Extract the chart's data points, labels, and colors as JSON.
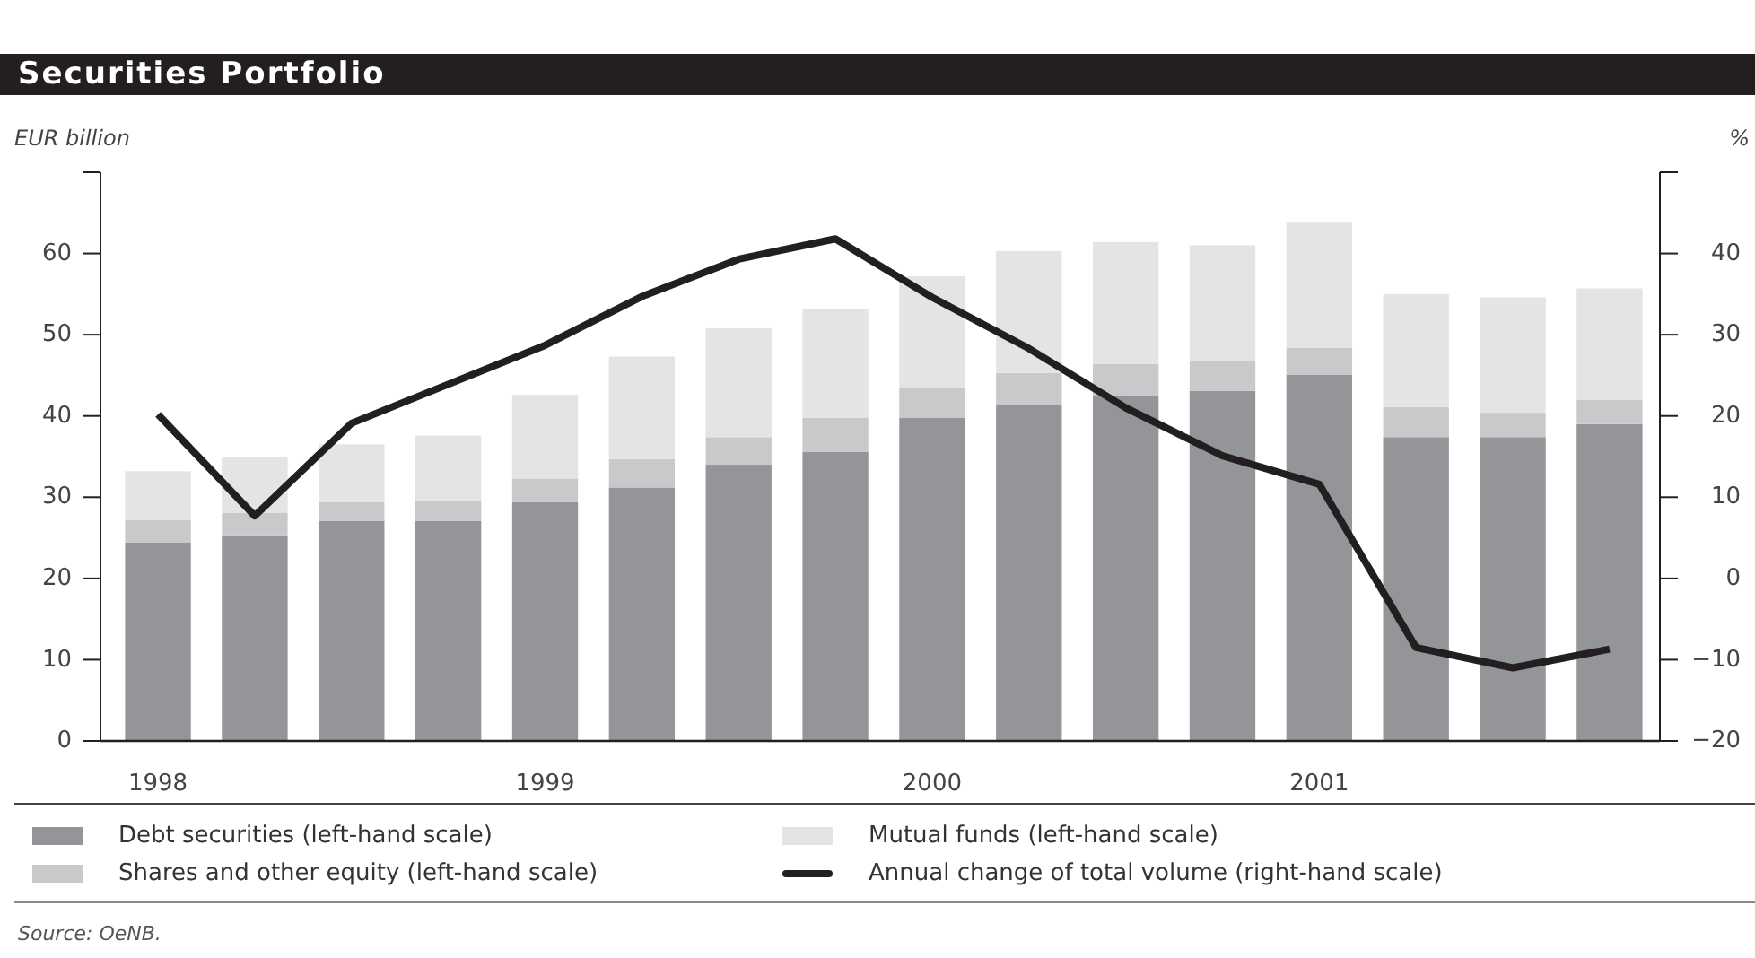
{
  "chart_data": {
    "type": "bar",
    "title": "Securities Portfolio",
    "ylabel": "EUR billion",
    "y2label": "%",
    "categories": [
      "1998",
      null,
      null,
      null,
      "1999",
      null,
      null,
      null,
      "2000",
      null,
      null,
      null,
      "2001",
      null,
      null,
      null
    ],
    "stacked": true,
    "series": [
      {
        "name": "Debt securities (left-hand scale)",
        "color": "#939598",
        "values": [
          24.4,
          25.3,
          27.1,
          27.1,
          29.4,
          31.2,
          34.0,
          35.6,
          39.8,
          41.3,
          42.4,
          43.1,
          45.1,
          37.4,
          37.4,
          39.0
        ]
      },
      {
        "name": "Shares and other equity (left-hand scale)",
        "color": "#c8c9cb",
        "values": [
          2.8,
          2.8,
          2.3,
          2.5,
          2.9,
          3.5,
          3.4,
          4.2,
          3.7,
          4.0,
          4.0,
          3.7,
          3.3,
          3.7,
          3.0,
          3.0
        ]
      },
      {
        "name": "Mutual funds (left-hand scale)",
        "color": "#e3e4e6",
        "values": [
          6.0,
          6.8,
          7.1,
          8.0,
          10.3,
          12.6,
          13.4,
          13.4,
          13.7,
          15.0,
          15.0,
          14.2,
          15.4,
          13.9,
          14.2,
          13.7
        ]
      },
      {
        "name": "Annual change of total volume (right-hand scale)",
        "type": "line",
        "axis": "y2",
        "color": "#231f20",
        "values": [
          20.2,
          7.7,
          19.1,
          23.9,
          28.7,
          34.7,
          39.3,
          41.8,
          34.6,
          28.3,
          21.0,
          15.1,
          11.6,
          -8.5,
          -11.0,
          -8.7
        ]
      }
    ],
    "ylim": [
      0,
      70
    ],
    "yticks": [
      0,
      10,
      20,
      30,
      40,
      50,
      60,
      {
        "value": 70,
        "label": null
      }
    ],
    "y2lim": [
      -20,
      50
    ],
    "y2ticks": [
      -20,
      -10,
      0,
      10,
      20,
      30,
      40,
      {
        "value": 50,
        "label": null
      }
    ],
    "grid": false,
    "legend": "bottom",
    "line_style": "solid",
    "marker": "none",
    "annotations": [
      "Source: OeNB."
    ]
  }
}
